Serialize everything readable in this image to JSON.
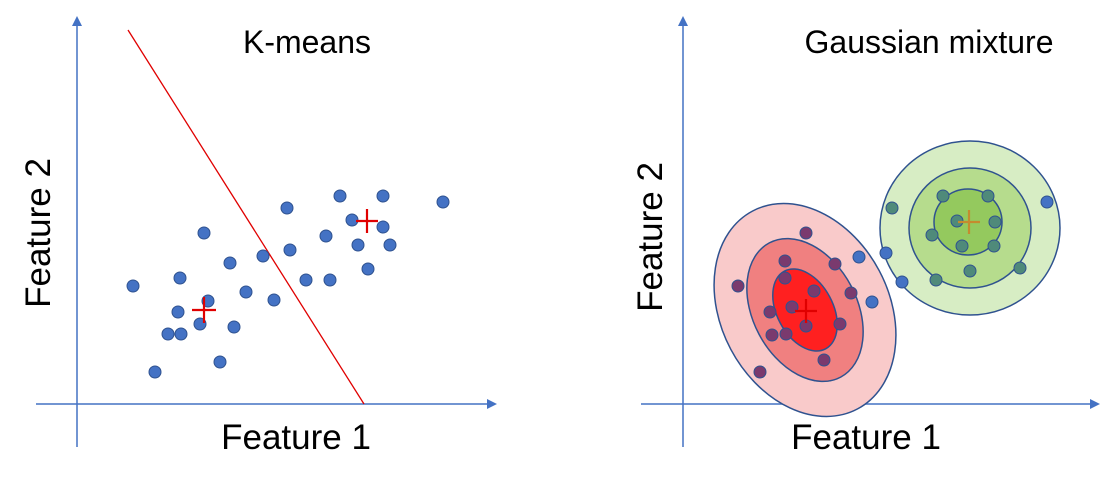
{
  "colors": {
    "axis": "#4472c4",
    "point_blue": "#4472c4",
    "point_blue_stroke": "#2f528f",
    "kmeans_line": "#e00000",
    "centroid": "#e00000",
    "green_centroid": "#c58b2e",
    "red_outer": "#f9caca",
    "red_mid": "#f08080",
    "red_inner": "#ff2020",
    "green_outer": "#d7edc4",
    "green_mid": "#b6dc8d",
    "green_inner": "#94c95e",
    "ellipse_stroke": "#2f528f",
    "point_red_region": "#7a3a6e",
    "point_green_region": "#4f8a7a"
  },
  "kmeans": {
    "title": "K-means",
    "xlabel": "Feature 1",
    "ylabel": "Feature 2",
    "axes_arrows": true,
    "decision_boundary": "straight line",
    "centroid_marker": "+"
  },
  "gmm": {
    "title": "Gaussian mixture",
    "xlabel": "Feature 1",
    "ylabel": "Feature 2",
    "axes_arrows": true,
    "components": [
      {
        "color": "red",
        "rings": 3
      },
      {
        "color": "green",
        "rings": 3
      }
    ],
    "centroid_marker": "+"
  }
}
